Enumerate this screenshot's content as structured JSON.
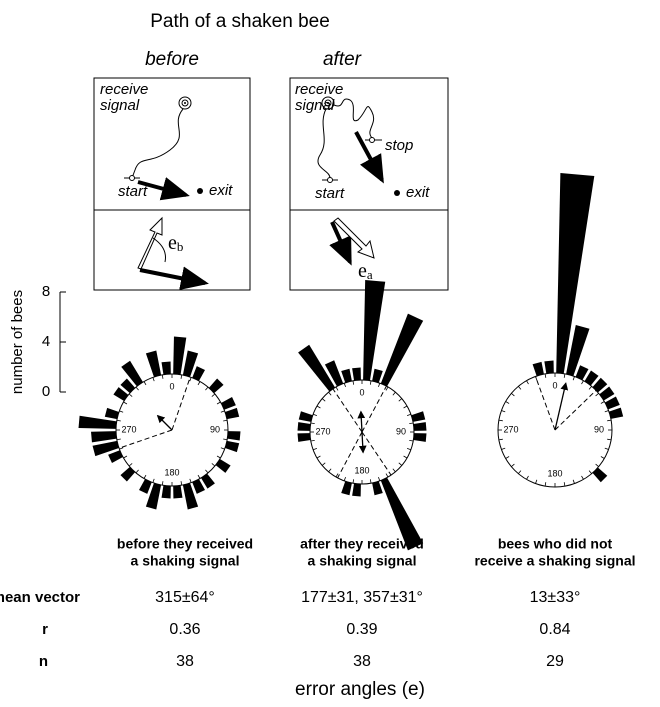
{
  "title": "Path of a shaken bee",
  "diagrams": [
    {
      "label": "before",
      "receive": "receive",
      "signal": "signal",
      "start": "start",
      "exit": "exit",
      "e": "e",
      "sub": "b"
    },
    {
      "label": "after",
      "receive": "receive",
      "signal": "signal",
      "start": "start",
      "exit": "exit",
      "stop": "stop",
      "e": "e",
      "sub": "a"
    }
  ],
  "chart_data": {
    "type": "rose",
    "y_label": "number of bees",
    "ylim": [
      0,
      8
    ],
    "yticks": [
      0,
      4,
      8
    ],
    "compass": [
      0,
      90,
      180,
      270
    ],
    "color": "#000000",
    "roses": [
      {
        "values": [
          3,
          2,
          1,
          0,
          1,
          0,
          1,
          1,
          0,
          1,
          1,
          0,
          1,
          0,
          1,
          1,
          2,
          1,
          1,
          2,
          1,
          0,
          1,
          0,
          1,
          2,
          2,
          3,
          1,
          0,
          1,
          1,
          2,
          0,
          2,
          1
        ],
        "mean_angles": [
          315
        ],
        "ci": 64,
        "caption": [
          "before they received",
          "a shaking signal"
        ]
      },
      {
        "values": [
          8,
          1,
          6,
          0,
          0,
          0,
          0,
          1,
          1,
          1,
          0,
          0,
          0,
          0,
          0,
          6,
          1,
          0,
          1,
          1,
          0,
          0,
          0,
          0,
          0,
          0,
          1,
          1,
          1,
          0,
          0,
          0,
          4,
          2,
          1,
          1
        ],
        "mean_angles": [
          177,
          357
        ],
        "ci": 31,
        "caption": [
          "after they received",
          "a shaking signal"
        ]
      },
      {
        "values": [
          16,
          4,
          1,
          1,
          1,
          1,
          1,
          1,
          0,
          0,
          0,
          0,
          0,
          1,
          0,
          0,
          0,
          0,
          0,
          0,
          0,
          0,
          0,
          0,
          0,
          0,
          0,
          0,
          0,
          0,
          0,
          0,
          0,
          0,
          1,
          1
        ],
        "mean_angles": [
          13
        ],
        "ci": 33,
        "caption": [
          "bees who did not",
          "receive a shaking signal"
        ]
      }
    ]
  },
  "table": {
    "row_labels": [
      "mean vector",
      "r",
      "n"
    ],
    "rows": [
      [
        "315±64°",
        "177±31, 357±31°",
        "13±33°"
      ],
      [
        0.36,
        0.39,
        0.84
      ],
      [
        38,
        38,
        29
      ]
    ]
  },
  "x_label": "error angles (e)"
}
